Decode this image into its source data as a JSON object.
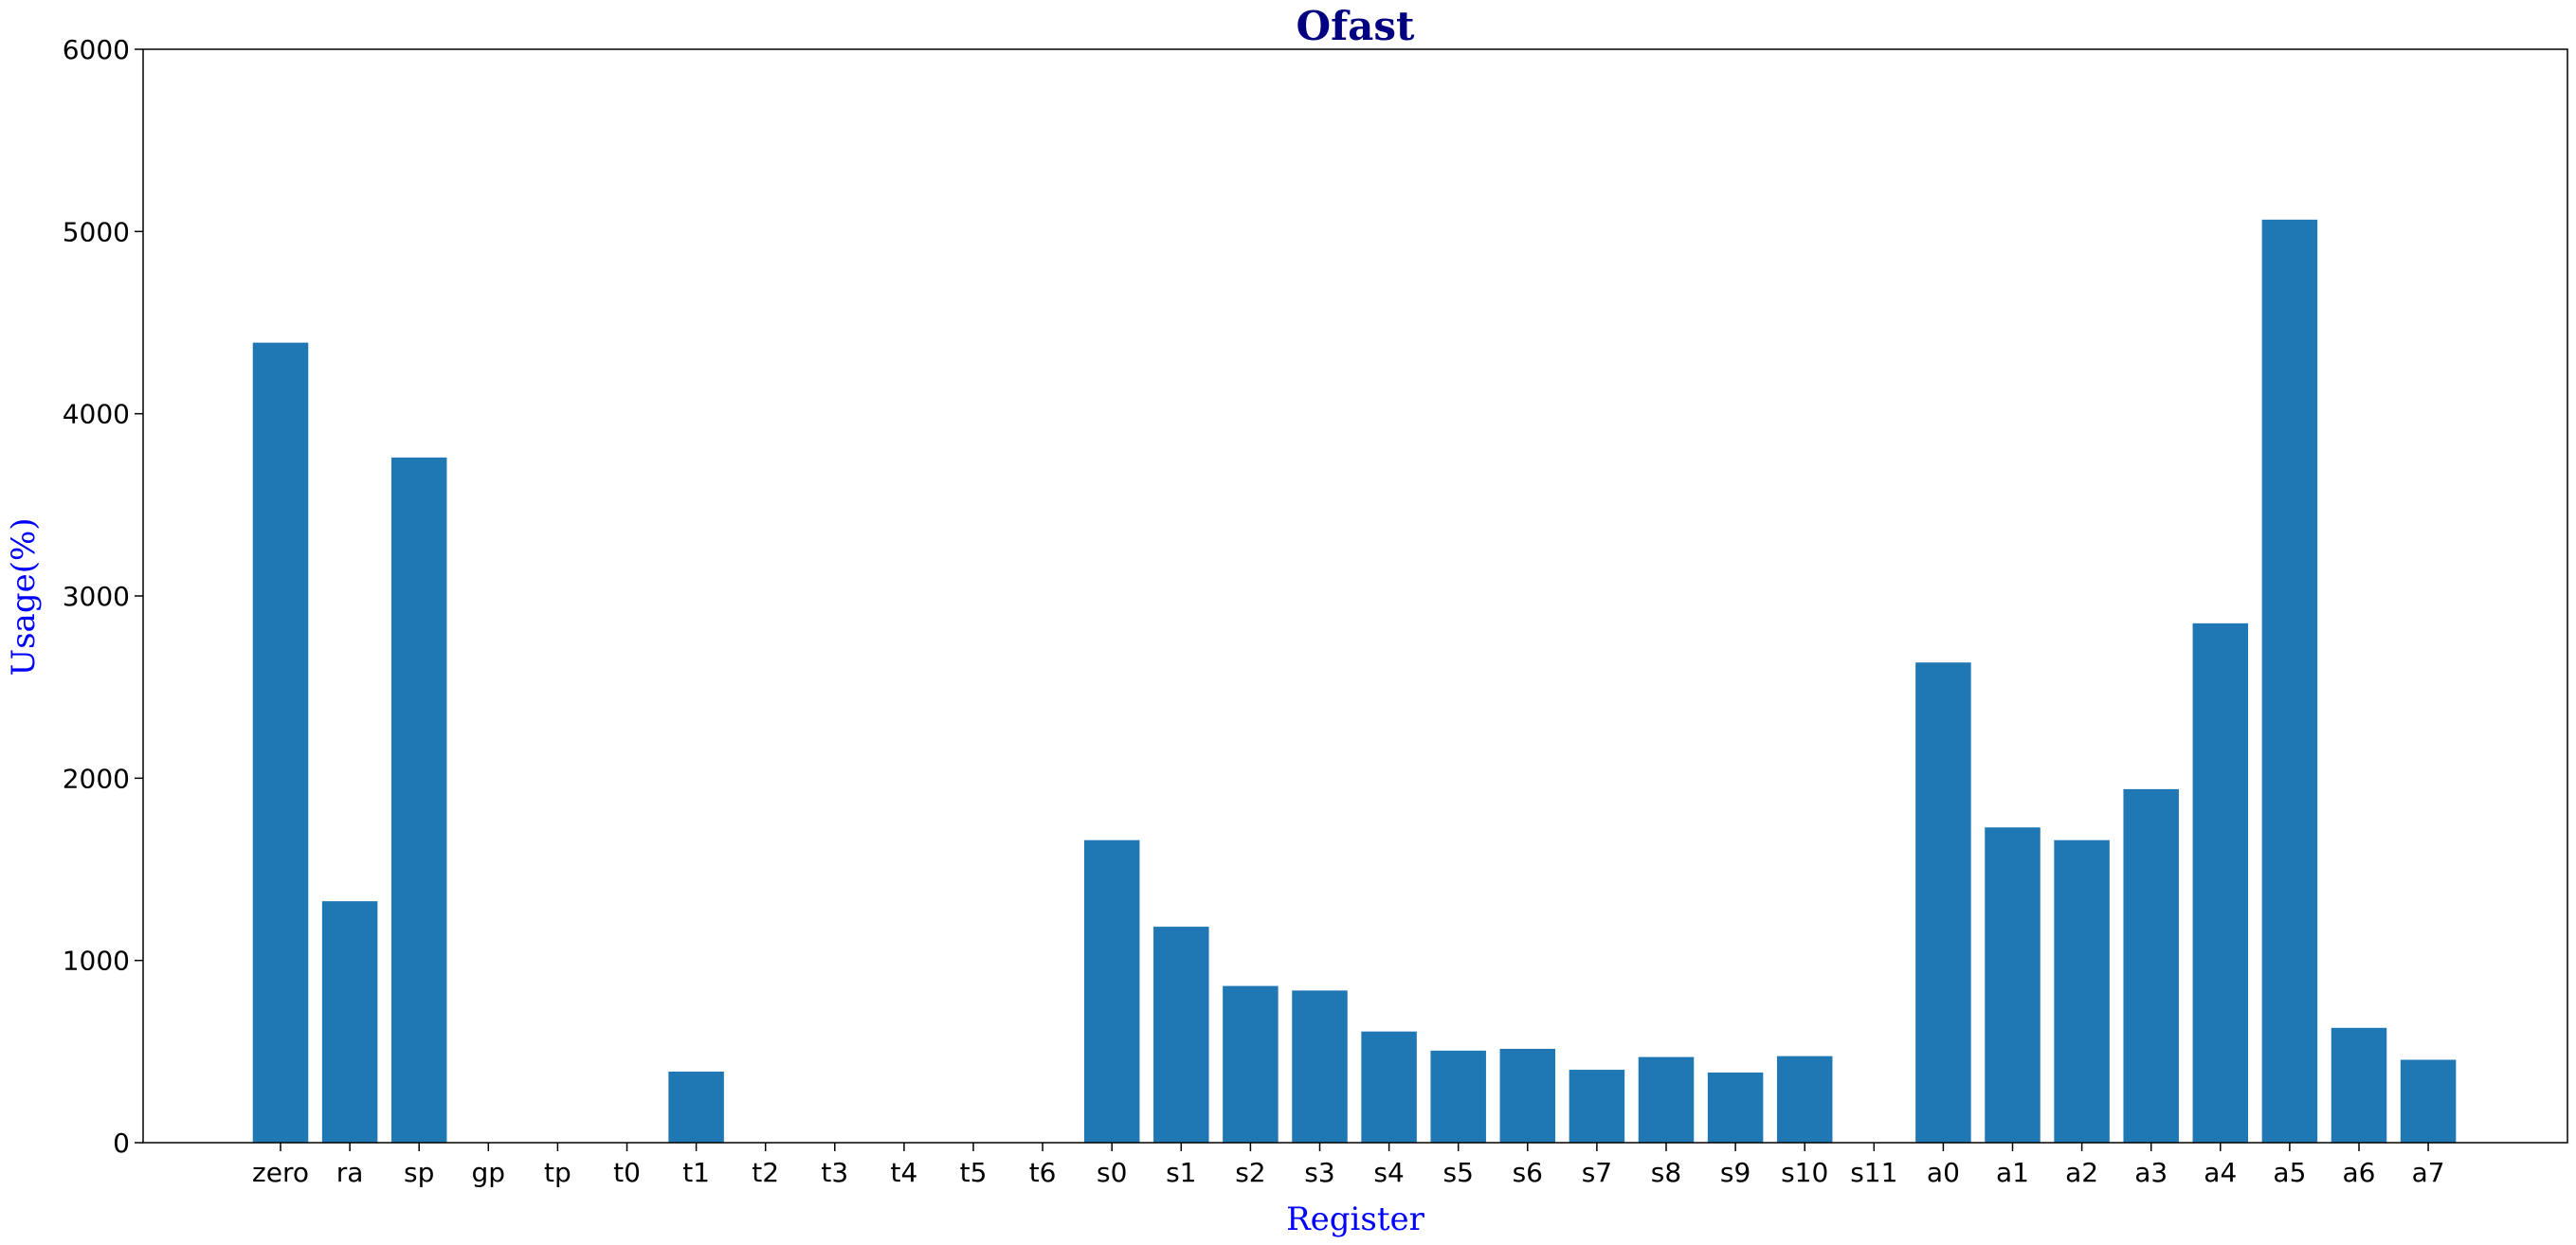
{
  "chart_data": {
    "type": "bar",
    "title": "Ofast",
    "xlabel": "Register",
    "ylabel": "Usage(%)",
    "categories": [
      "zero",
      "ra",
      "sp",
      "gp",
      "tp",
      "t0",
      "t1",
      "t2",
      "t3",
      "t4",
      "t5",
      "t6",
      "s0",
      "s1",
      "s2",
      "s3",
      "s4",
      "s5",
      "s6",
      "s7",
      "s8",
      "s9",
      "s10",
      "s11",
      "a0",
      "a1",
      "a2",
      "a3",
      "a4",
      "a5",
      "a6",
      "a7"
    ],
    "values": [
      4390,
      1325,
      3760,
      0,
      0,
      0,
      390,
      0,
      0,
      0,
      0,
      0,
      1660,
      1185,
      860,
      835,
      610,
      505,
      515,
      400,
      470,
      385,
      475,
      0,
      2635,
      1730,
      1660,
      1940,
      2850,
      5065,
      630,
      455
    ],
    "ylim": [
      0,
      6000
    ],
    "yticks": [
      0,
      1000,
      2000,
      3000,
      4000,
      5000,
      6000
    ],
    "grid": false,
    "colors": {
      "bar": "#1f77b4",
      "title": "#000080",
      "axis_label": "#0000ff",
      "axis": "#000000"
    }
  }
}
